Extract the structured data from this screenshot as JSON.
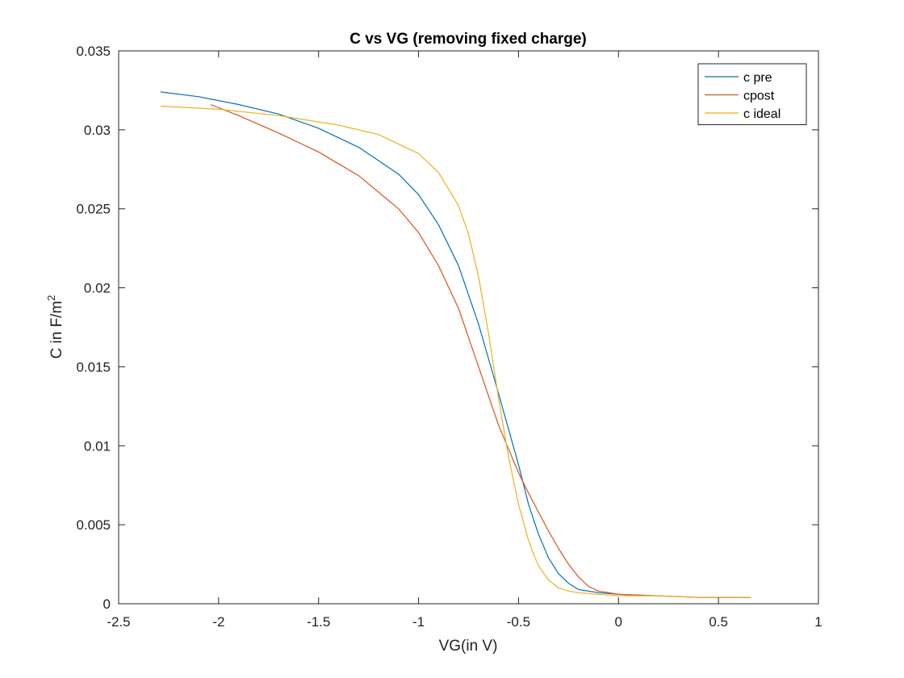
{
  "chart_data": {
    "type": "line",
    "title": "C vs VG (removing fixed charge)",
    "xlabel": "VG(in V)",
    "ylabel": "C in F/m",
    "ylabel_superscript": "2",
    "xlim": [
      -2.5,
      1
    ],
    "ylim": [
      0,
      0.035
    ],
    "xticks": [
      -2.5,
      -2,
      -1.5,
      -1,
      -0.5,
      0,
      0.5,
      1
    ],
    "xtick_labels": [
      "-2.5",
      "-2",
      "-1.5",
      "-1",
      "-0.5",
      "0",
      "0.5",
      "1"
    ],
    "yticks": [
      0,
      0.005,
      0.01,
      0.015,
      0.02,
      0.025,
      0.03,
      0.035
    ],
    "ytick_labels": [
      "0",
      "0.005",
      "0.01",
      "0.015",
      "0.02",
      "0.025",
      "0.03",
      "0.035"
    ],
    "grid": false,
    "legend_position": "top-right",
    "series": [
      {
        "name": "c pre",
        "color": "#0072BD",
        "x": [
          -2.29,
          -2.1,
          -1.9,
          -1.7,
          -1.5,
          -1.3,
          -1.1,
          -1.0,
          -0.9,
          -0.8,
          -0.7,
          -0.6,
          -0.5,
          -0.45,
          -0.4,
          -0.35,
          -0.3,
          -0.25,
          -0.2,
          -0.1,
          0.0,
          0.2,
          0.4,
          0.66
        ],
        "y": [
          0.0324,
          0.0321,
          0.0316,
          0.031,
          0.0301,
          0.0289,
          0.0272,
          0.0259,
          0.024,
          0.0214,
          0.0177,
          0.0133,
          0.0088,
          0.0063,
          0.0044,
          0.0029,
          0.0019,
          0.0013,
          0.0009,
          0.0007,
          0.0006,
          0.0005,
          0.0004,
          0.0004
        ]
      },
      {
        "name": "cpost",
        "color": "#D95319",
        "x": [
          -2.04,
          -1.9,
          -1.7,
          -1.5,
          -1.3,
          -1.1,
          -1.0,
          -0.9,
          -0.8,
          -0.7,
          -0.6,
          -0.5,
          -0.45,
          -0.4,
          -0.35,
          -0.3,
          -0.25,
          -0.2,
          -0.15,
          -0.1,
          0.0,
          0.2,
          0.4,
          0.66
        ],
        "y": [
          0.0316,
          0.0309,
          0.0298,
          0.0286,
          0.0271,
          0.025,
          0.0235,
          0.0214,
          0.0187,
          0.015,
          0.0113,
          0.0083,
          0.007,
          0.0058,
          0.0046,
          0.0035,
          0.0025,
          0.0017,
          0.0011,
          0.0008,
          0.0006,
          0.0005,
          0.0004,
          0.0004
        ]
      },
      {
        "name": "c ideal",
        "color": "#EDB120",
        "x": [
          -2.29,
          -2.0,
          -1.7,
          -1.4,
          -1.2,
          -1.0,
          -0.9,
          -0.8,
          -0.75,
          -0.7,
          -0.65,
          -0.6,
          -0.55,
          -0.5,
          -0.45,
          -0.42,
          -0.4,
          -0.35,
          -0.3,
          -0.25,
          -0.2,
          -0.1,
          0.0,
          0.2,
          0.4,
          0.66
        ],
        "y": [
          0.0315,
          0.0313,
          0.0309,
          0.0303,
          0.0297,
          0.0285,
          0.0273,
          0.0252,
          0.0234,
          0.0207,
          0.0171,
          0.013,
          0.0093,
          0.0063,
          0.004,
          0.003,
          0.0024,
          0.0015,
          0.001,
          0.0008,
          0.0007,
          0.0006,
          0.0005,
          0.0005,
          0.0004,
          0.0004
        ]
      }
    ]
  }
}
